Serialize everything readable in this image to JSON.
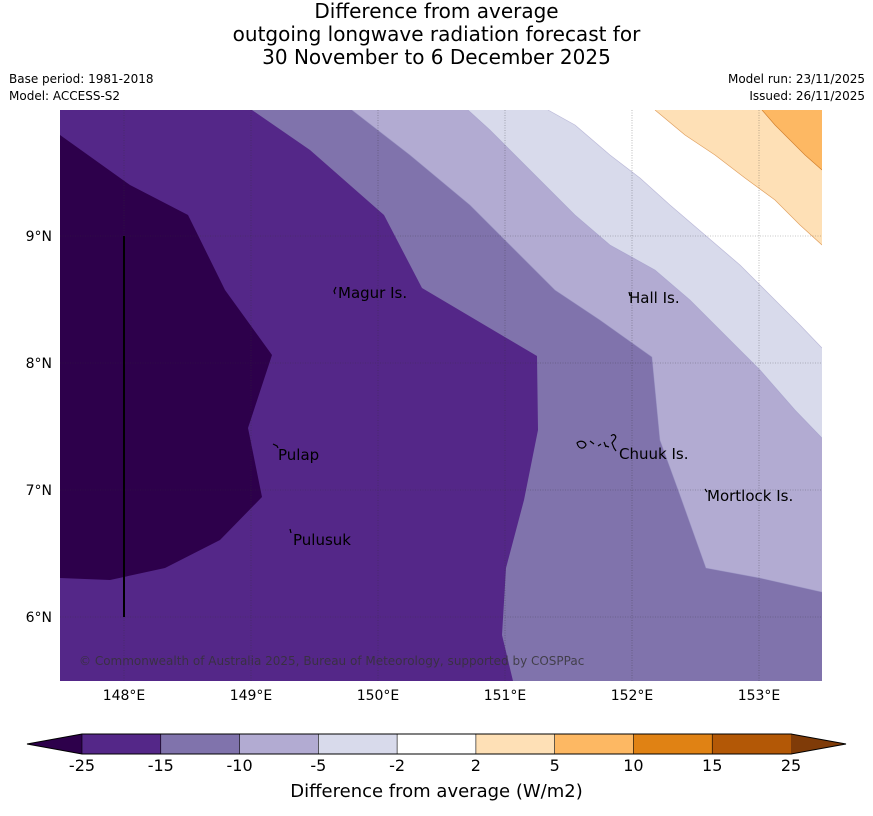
{
  "title": {
    "line1": "Difference from average",
    "line2": "outgoing longwave radiation forecast for",
    "line3": "30 November to 6 December 2025"
  },
  "meta": {
    "base_period": "Base period: 1981-2018",
    "model": "Model: ACCESS-S2",
    "model_run": "Model run: 23/11/2025",
    "issued": "Issued: 26/11/2025"
  },
  "map": {
    "lat_labels": [
      "9°N",
      "8°N",
      "7°N",
      "6°N"
    ],
    "lon_labels": [
      "148°E",
      "149°E",
      "150°E",
      "151°E",
      "152°E",
      "153°E"
    ],
    "places": [
      {
        "name": "Magur Is."
      },
      {
        "name": "Hall Is."
      },
      {
        "name": "Pulap"
      },
      {
        "name": "Chuuk Is."
      },
      {
        "name": "Mortlock Is."
      },
      {
        "name": "Pulusuk"
      }
    ],
    "copyright": "© Commonwealth of Australia 2025, Bureau of Meteorology, supported by COSPPac"
  },
  "colorbar": {
    "title": "Difference from average (W/m2)",
    "ticks": [
      "-25",
      "-15",
      "-10",
      "-5",
      "-2",
      "2",
      "5",
      "10",
      "15",
      "25"
    ],
    "colors": {
      "below": "#2d004b",
      "bins": [
        "#542788",
        "#8073ac",
        "#b2abd2",
        "#d8daeb",
        "#ffffff",
        "#fee0b6",
        "#fdb863",
        "#e08214",
        "#b35806"
      ],
      "above": "#7f3b08"
    }
  }
}
